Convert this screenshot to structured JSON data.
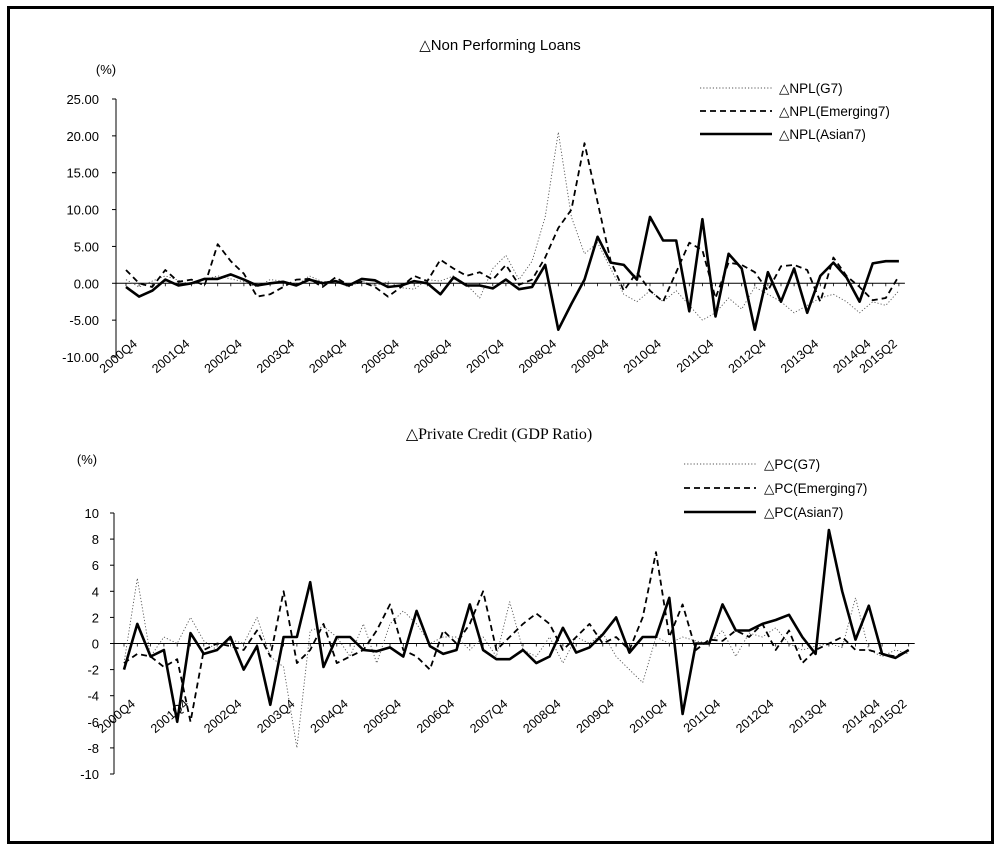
{
  "chart_data": [
    {
      "type": "line",
      "title": "△Non Performing Loans",
      "ylabel": "(%)",
      "ylim": [
        -10,
        25
      ],
      "yticks": [
        "25.00",
        "20.00",
        "15.00",
        "10.00",
        "5.00",
        "0.00",
        "-5.00",
        "-10.00"
      ],
      "x": [
        "2000Q4",
        "2001Q1",
        "2001Q2",
        "2001Q3",
        "2001Q4",
        "2002Q1",
        "2002Q2",
        "2002Q3",
        "2002Q4",
        "2003Q1",
        "2003Q2",
        "2003Q3",
        "2003Q4",
        "2004Q1",
        "2004Q2",
        "2004Q3",
        "2004Q4",
        "2005Q1",
        "2005Q2",
        "2005Q3",
        "2005Q4",
        "2006Q1",
        "2006Q2",
        "2006Q3",
        "2006Q4",
        "2007Q1",
        "2007Q2",
        "2007Q3",
        "2007Q4",
        "2008Q1",
        "2008Q2",
        "2008Q3",
        "2008Q4",
        "2009Q1",
        "2009Q2",
        "2009Q3",
        "2009Q4",
        "2010Q1",
        "2010Q2",
        "2010Q3",
        "2010Q4",
        "2011Q1",
        "2011Q2",
        "2011Q3",
        "2011Q4",
        "2012Q1",
        "2012Q2",
        "2012Q3",
        "2012Q4",
        "2013Q1",
        "2013Q2",
        "2013Q3",
        "2013Q4",
        "2014Q1",
        "2014Q2",
        "2014Q3",
        "2014Q4",
        "2015Q1",
        "2015Q2",
        "2015Q3"
      ],
      "xticklabels": [
        "2000Q4",
        "2001Q4",
        "2002Q4",
        "2003Q4",
        "2004Q4",
        "2005Q4",
        "2006Q4",
        "2007Q4",
        "2008Q4",
        "2009Q4",
        "2010Q4",
        "2011Q4",
        "2012Q4",
        "2013Q4",
        "2014Q4",
        "2015Q2"
      ],
      "legend_position": "top-right",
      "series": [
        {
          "name": "△NPL(G7)",
          "style": "dotted",
          "values": [
            0.5,
            -0.5,
            0.3,
            1.0,
            0.4,
            -0.2,
            0.5,
            1.0,
            0.6,
            0.2,
            -0.5,
            0.5,
            0.3,
            -0.3,
            1.0,
            0.2,
            0.3,
            -0.5,
            0.3,
            -0.3,
            0.2,
            -0.6,
            -0.8,
            0.5,
            0.3,
            1.0,
            -0.2,
            -2.0,
            2.0,
            3.8,
            0.5,
            3.0,
            9.0,
            20.5,
            9.0,
            4.0,
            5.5,
            2.0,
            -1.5,
            -2.5,
            -1.0,
            -2.5,
            -1.0,
            -3.0,
            -5.0,
            -4.0,
            -2.0,
            -3.5,
            -0.5,
            -1.5,
            -2.5,
            -4.0,
            -3.0,
            -2.0,
            -1.5,
            -2.5,
            -4.0,
            -2.5,
            -3.0,
            -1.0
          ]
        },
        {
          "name": "△NPL(Emerging7)",
          "style": "dashed",
          "values": [
            1.8,
            0.0,
            -0.5,
            1.8,
            0.2,
            0.5,
            -0.3,
            5.3,
            3.0,
            1.3,
            -1.8,
            -1.5,
            -0.5,
            0.5,
            0.6,
            -0.5,
            0.8,
            -0.3,
            0.2,
            -0.5,
            -1.8,
            -0.5,
            1.0,
            0.3,
            3.2,
            2.0,
            1.0,
            1.5,
            0.5,
            2.5,
            -0.2,
            0.5,
            3.5,
            7.5,
            10.0,
            19.0,
            11.0,
            3.0,
            -1.0,
            1.5,
            -1.0,
            -2.5,
            1.5,
            5.5,
            4.5,
            -2.0,
            2.8,
            2.5,
            1.5,
            -1.0,
            2.3,
            2.5,
            1.8,
            -2.5,
            3.5,
            1.0,
            -0.5,
            -2.3,
            -2.0,
            1.0
          ]
        },
        {
          "name": "△NPL(Asian7)",
          "style": "solid",
          "values": [
            -0.5,
            -1.8,
            -1.0,
            0.5,
            -0.3,
            0.0,
            0.6,
            0.6,
            1.2,
            0.5,
            -0.3,
            0.0,
            0.2,
            -0.3,
            0.5,
            0.0,
            0.3,
            -0.3,
            0.6,
            0.4,
            -0.5,
            -0.3,
            0.3,
            0.0,
            -1.5,
            0.8,
            -0.3,
            -0.3,
            -0.7,
            0.5,
            -0.8,
            -0.5,
            2.5,
            -6.3,
            -2.8,
            0.5,
            6.3,
            2.8,
            2.5,
            0.5,
            9.0,
            5.8,
            5.8,
            -3.8,
            8.7,
            -4.5,
            4.0,
            2.0,
            -6.3,
            1.5,
            -2.5,
            2.0,
            -4.0,
            1.0,
            2.8,
            0.8,
            -2.5,
            2.7,
            3.0,
            3.0
          ]
        }
      ]
    },
    {
      "type": "line",
      "title": "△Private Credit (GDP Ratio)",
      "ylabel": "(%)",
      "ylim": [
        -10,
        10
      ],
      "yticks": [
        "10",
        "8",
        "6",
        "4",
        "2",
        "0",
        "-2",
        "-4",
        "-6",
        "-8",
        "-10"
      ],
      "x": [
        "2000Q4",
        "2001Q1",
        "2001Q2",
        "2001Q3",
        "2001Q4",
        "2002Q1",
        "2002Q2",
        "2002Q3",
        "2002Q4",
        "2003Q1",
        "2003Q2",
        "2003Q3",
        "2003Q4",
        "2004Q1",
        "2004Q2",
        "2004Q3",
        "2004Q4",
        "2005Q1",
        "2005Q2",
        "2005Q3",
        "2005Q4",
        "2006Q1",
        "2006Q2",
        "2006Q3",
        "2006Q4",
        "2007Q1",
        "2007Q2",
        "2007Q3",
        "2007Q4",
        "2008Q1",
        "2008Q2",
        "2008Q3",
        "2008Q4",
        "2009Q1",
        "2009Q2",
        "2009Q3",
        "2009Q4",
        "2010Q1",
        "2010Q2",
        "2010Q3",
        "2010Q4",
        "2011Q1",
        "2011Q2",
        "2011Q3",
        "2011Q4",
        "2012Q1",
        "2012Q2",
        "2012Q3",
        "2012Q4",
        "2013Q1",
        "2013Q2",
        "2013Q3",
        "2013Q4",
        "2014Q1",
        "2014Q2",
        "2014Q3",
        "2014Q4",
        "2015Q1",
        "2015Q2",
        "2015Q3"
      ],
      "xticklabels": [
        "2000Q4",
        "2001Q4",
        "2002Q4",
        "2003Q4",
        "2004Q4",
        "2005Q4",
        "2006Q4",
        "2007Q4",
        "2008Q4",
        "2009Q4",
        "2010Q4",
        "2011Q4",
        "2012Q4",
        "2013Q4",
        "2014Q4",
        "2015Q2"
      ],
      "legend_position": "top-right",
      "series": [
        {
          "name": "△PC(G7)",
          "style": "dotted",
          "values": [
            -1.5,
            5.0,
            -1.0,
            0.5,
            0.0,
            2.0,
            0.2,
            -0.5,
            0.3,
            0.0,
            2.0,
            -1.0,
            -1.8,
            -8.0,
            1.0,
            1.3,
            0.5,
            -1.0,
            1.5,
            -1.5,
            1.5,
            2.5,
            1.5,
            0.0,
            0.5,
            0.5,
            -0.5,
            0.5,
            -1.0,
            3.2,
            -0.5,
            -1.0,
            0.5,
            -1.5,
            0.5,
            0.0,
            0.8,
            -1.0,
            -2.0,
            -3.0,
            0.5,
            0.0,
            0.5,
            0.2,
            0.0,
            1.0,
            -1.0,
            0.8,
            0.5,
            1.2,
            0.0,
            -0.5,
            -0.2,
            0.0,
            -0.3,
            3.5,
            -0.5,
            -1.0,
            -0.5,
            -0.8
          ]
        },
        {
          "name": "△PC(Emerging7)",
          "style": "dashed",
          "values": [
            -1.5,
            -0.8,
            -1.0,
            -1.8,
            -1.2,
            -6.0,
            -0.5,
            0.0,
            -0.2,
            -0.5,
            1.0,
            -1.0,
            4.0,
            -1.5,
            -0.5,
            1.5,
            -1.5,
            -1.0,
            -0.5,
            1.0,
            3.0,
            -0.5,
            -1.0,
            -2.0,
            1.0,
            0.0,
            1.5,
            4.0,
            -0.5,
            0.5,
            1.5,
            2.3,
            1.5,
            -0.5,
            0.5,
            1.5,
            0.0,
            0.5,
            -0.5,
            2.0,
            7.0,
            0.5,
            3.0,
            -0.5,
            0.3,
            0.2,
            1.0,
            0.5,
            1.5,
            -0.5,
            1.0,
            -1.5,
            -0.5,
            0.0,
            0.5,
            -0.5,
            -0.5,
            -0.8,
            -1.0,
            -0.5
          ]
        },
        {
          "name": "△PC(Asian7)",
          "style": "solid",
          "values": [
            -2.0,
            1.5,
            -1.0,
            -0.5,
            -6.0,
            0.8,
            -0.8,
            -0.5,
            0.5,
            -2.0,
            -0.2,
            -4.7,
            0.5,
            0.5,
            4.7,
            -1.8,
            0.5,
            0.5,
            -0.5,
            -0.6,
            -0.3,
            -1.0,
            2.5,
            -0.2,
            -0.8,
            -0.5,
            3.0,
            -0.5,
            -1.2,
            -1.2,
            -0.5,
            -1.5,
            -1.0,
            1.2,
            -0.7,
            -0.3,
            0.7,
            2.0,
            -0.7,
            0.5,
            0.5,
            3.5,
            -5.4,
            0.0,
            0.0,
            3.0,
            1.0,
            1.0,
            1.5,
            1.8,
            2.2,
            0.5,
            -0.8,
            8.7,
            4.0,
            0.3,
            2.9,
            -0.8,
            -1.1,
            -0.5
          ]
        }
      ]
    }
  ]
}
